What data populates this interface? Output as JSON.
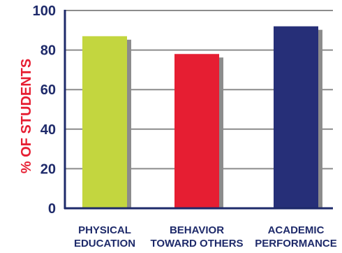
{
  "chart_data": {
    "type": "bar",
    "title": "",
    "xlabel": "",
    "ylabel": "% OF STUDENTS",
    "ylim": [
      0,
      100
    ],
    "yticks": [
      0,
      20,
      40,
      60,
      80,
      100
    ],
    "grid": true,
    "legend": "none",
    "categories": [
      [
        "PHYSICAL",
        "EDUCATION"
      ],
      [
        "BEHAVIOR",
        "TOWARD OTHERS"
      ],
      [
        "ACADEMIC",
        "PERFORMANCE"
      ]
    ],
    "values": [
      87,
      78,
      92
    ],
    "colors": [
      "#c3d63f",
      "#e61e32",
      "#262f78"
    ],
    "colors_meta": {
      "axis": "#1e2a6a",
      "grid": "#8c8c8c",
      "ylabel": "#e61e32",
      "shadow": "#8c8c8c"
    }
  }
}
